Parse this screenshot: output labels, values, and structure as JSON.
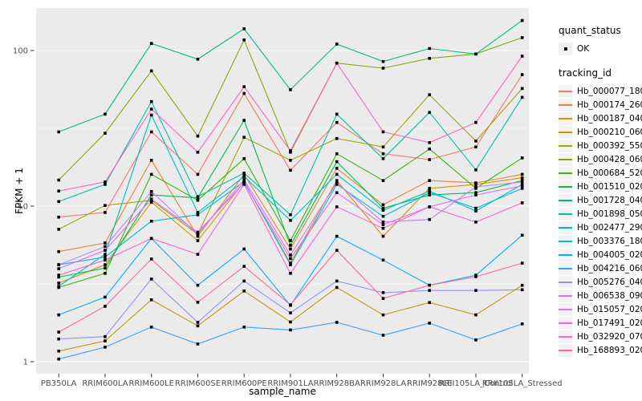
{
  "figure": {
    "background": "#FFFFFF",
    "panel_background": "#EBEBEB",
    "gridline_color": "#FFFFFF",
    "tick_text_color": "#4D4D4D",
    "point_color": "#000000"
  },
  "legend": {
    "quant_status_title": "quant_status",
    "ok_label": "OK",
    "tracking_id_title": "tracking_id"
  },
  "chart_data": {
    "type": "line",
    "title": "",
    "xlabel": "sample_name",
    "ylabel": "FPKM + 1",
    "y_scale": "log10",
    "y_ticks": [
      1,
      10,
      100
    ],
    "y_minor_ticks": [
      3.162,
      31.62
    ],
    "ylim": [
      0.85,
      187
    ],
    "grid": true,
    "legend_position": "right",
    "point_marker": "small black square (quant_status = OK) on every data point",
    "categories": [
      "PB350LA",
      "RRIM600LA",
      "RRIM600LE",
      "RRIM600SE",
      "RRIM600PE",
      "RRIM901LA",
      "RRIM928BA",
      "RRIM928LA",
      "RRIM928LE",
      "RRII105LA_Control",
      "RRII105LA_Stressed"
    ],
    "series": [
      {
        "name": "Hb_000077_180",
        "color": "#F8766D",
        "values": [
          8.5,
          9.1,
          30,
          16,
          53,
          17,
          34.5,
          21.7,
          19.9,
          24,
          70
        ]
      },
      {
        "name": "Hb_000174_260",
        "color": "#EA8331",
        "values": [
          5.1,
          5.8,
          19.7,
          6.4,
          16,
          5.3,
          17.5,
          10.2,
          14.6,
          14.1,
          16
        ]
      },
      {
        "name": "Hb_000187_040",
        "color": "#D89000",
        "values": [
          3.2,
          4.2,
          10.6,
          6.0,
          14.3,
          4.3,
          14.6,
          6.4,
          13.0,
          13.8,
          15.2
        ]
      },
      {
        "name": "Hb_000210_060",
        "color": "#C09B00",
        "values": [
          1.17,
          1.36,
          2.5,
          1.7,
          2.85,
          1.8,
          3.0,
          2.0,
          2.4,
          2.0,
          3.1
        ]
      },
      {
        "name": "Hb_000392_550",
        "color": "#A3A500",
        "values": [
          7.1,
          10.1,
          10.9,
          6.6,
          27.7,
          19.7,
          27.2,
          24,
          52,
          26.2,
          57
        ]
      },
      {
        "name": "Hb_000428_060",
        "color": "#7CAE00",
        "values": [
          14.7,
          29.4,
          74,
          28.2,
          117,
          22.2,
          83,
          77,
          89,
          95,
          121
        ]
      },
      {
        "name": "Hb_000684_520",
        "color": "#39B600",
        "values": [
          3.0,
          3.7,
          16,
          10.9,
          20.2,
          6.0,
          21.7,
          14.6,
          23.3,
          13,
          20.4
        ]
      },
      {
        "name": "Hb_001510_020",
        "color": "#00BB4E",
        "values": [
          3.5,
          4.0,
          11.8,
          11.3,
          35.6,
          5.6,
          19.3,
          9.7,
          11.8,
          12.2,
          14.6
        ]
      },
      {
        "name": "Hb_001728_040",
        "color": "#00BF7D",
        "values": [
          30,
          39,
          111,
          88,
          138,
          56,
          110,
          85,
          103,
          95,
          156
        ]
      },
      {
        "name": "Hb_001898_050",
        "color": "#00C1A7",
        "values": [
          10.7,
          13.8,
          47,
          11.5,
          16.3,
          8.8,
          39,
          20.2,
          40,
          17.1,
          50
        ]
      },
      {
        "name": "Hb_002477_290",
        "color": "#00BFC4",
        "values": [
          3.05,
          4.9,
          38.5,
          9.1,
          15.5,
          8.1,
          16,
          9.4,
          12.5,
          9.3,
          13.8
        ]
      },
      {
        "name": "Hb_003376_180",
        "color": "#00BADE",
        "values": [
          4.2,
          4.7,
          8.0,
          8.8,
          14.4,
          4.2,
          13.8,
          8.6,
          12.2,
          9.7,
          13.0
        ]
      },
      {
        "name": "Hb_004005_020",
        "color": "#00B0F6",
        "values": [
          2.0,
          2.6,
          6.2,
          3.1,
          5.3,
          2.3,
          6.4,
          4.5,
          3.1,
          3.6,
          6.5
        ]
      },
      {
        "name": "Hb_004216_060",
        "color": "#35A2FF",
        "values": [
          1.04,
          1.24,
          1.67,
          1.3,
          1.67,
          1.6,
          1.79,
          1.48,
          1.77,
          1.38,
          1.75
        ]
      },
      {
        "name": "Hb_005276_040",
        "color": "#9590FF",
        "values": [
          1.4,
          1.45,
          3.4,
          1.79,
          3.3,
          2.06,
          3.3,
          2.78,
          2.87,
          2.87,
          2.9
        ]
      },
      {
        "name": "Hb_006538_090",
        "color": "#C77CFF",
        "values": [
          4.2,
          5.5,
          12.4,
          6.6,
          14.8,
          4.85,
          14.1,
          7.9,
          8.2,
          13.3,
          14.3
        ]
      },
      {
        "name": "Hb_015057_020",
        "color": "#E76BF3",
        "values": [
          3.96,
          5.2,
          11.1,
          6.8,
          14.1,
          4.6,
          12.2,
          7.6,
          9.9,
          11.8,
          13.5
        ]
      },
      {
        "name": "Hb_017491_020",
        "color": "#FA62DB",
        "values": [
          3.6,
          4.5,
          6.2,
          4.9,
          13.8,
          3.7,
          9.9,
          7.2,
          9.9,
          7.9,
          10.5
        ]
      },
      {
        "name": "Hb_032920_070",
        "color": "#FF61C7",
        "values": [
          12.5,
          14.3,
          42,
          22.2,
          58.5,
          22.7,
          83,
          30,
          25.6,
          34.5,
          92
        ]
      },
      {
        "name": "Hb_168893_020",
        "color": "#FF689F",
        "values": [
          1.55,
          2.27,
          4.57,
          2.41,
          4.1,
          2.32,
          5.2,
          2.55,
          3.1,
          3.52,
          4.3
        ]
      }
    ]
  }
}
